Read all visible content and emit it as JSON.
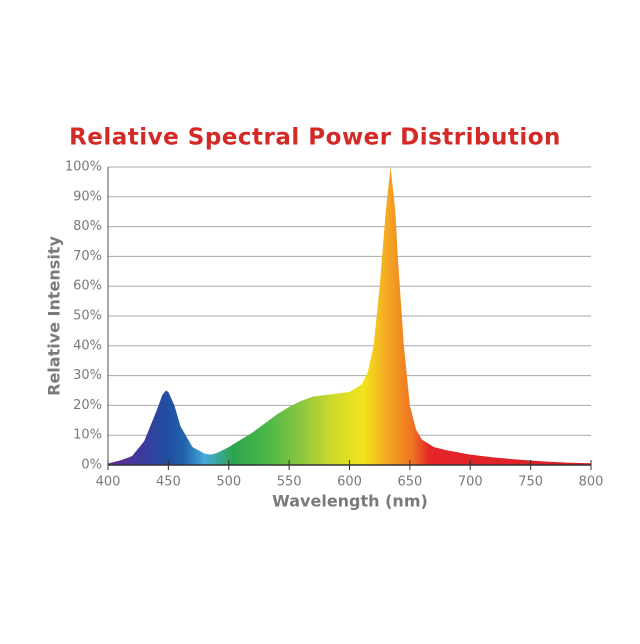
{
  "chart_data": {
    "type": "area",
    "title": "Relative Spectral Power Distribution",
    "x_label": "Wavelength (nm)",
    "y_label": "Relative Intensity",
    "x": [
      400,
      410,
      420,
      430,
      440,
      445,
      448,
      450,
      455,
      460,
      470,
      480,
      485,
      490,
      500,
      510,
      520,
      530,
      540,
      550,
      560,
      570,
      580,
      590,
      600,
      610,
      615,
      620,
      625,
      630,
      634,
      638,
      640,
      645,
      650,
      655,
      660,
      670,
      680,
      700,
      720,
      740,
      760,
      780,
      800
    ],
    "values": [
      0.5,
      1.5,
      3,
      8,
      18,
      23.5,
      25,
      24.5,
      20,
      13,
      6,
      3.8,
      3.5,
      4,
      6,
      8.5,
      11,
      14,
      17,
      19.5,
      21.5,
      23,
      23.5,
      24,
      24.5,
      27,
      31,
      40,
      60,
      85,
      100,
      85,
      70,
      40,
      20,
      12,
      8.5,
      6,
      5,
      3.5,
      2.5,
      1.8,
      1.2,
      0.8,
      0.6
    ],
    "xlim": [
      400,
      800
    ],
    "xticks": [
      400,
      450,
      500,
      550,
      600,
      650,
      700,
      750,
      800
    ],
    "ylim": [
      0,
      100
    ],
    "yticks": [
      {
        "value": 0,
        "label": "0%"
      },
      {
        "value": 10,
        "label": "10%"
      },
      {
        "value": 20,
        "label": "20%"
      },
      {
        "value": 30,
        "label": "30%"
      },
      {
        "value": 40,
        "label": "40%"
      },
      {
        "value": 50,
        "label": "50%"
      },
      {
        "value": 60,
        "label": "60%"
      },
      {
        "value": 70,
        "label": "70%"
      },
      {
        "value": 80,
        "label": "80%"
      },
      {
        "value": 90,
        "label": "90%"
      },
      {
        "value": 100,
        "label": "100%"
      }
    ],
    "grid": true
  }
}
